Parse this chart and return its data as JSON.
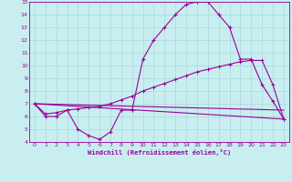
{
  "xlabel": "Windchill (Refroidissement éolien,°C)",
  "xlim": [
    -0.5,
    23.5
  ],
  "ylim": [
    4,
    15
  ],
  "xticks": [
    0,
    1,
    2,
    3,
    4,
    5,
    6,
    7,
    8,
    9,
    10,
    11,
    12,
    13,
    14,
    15,
    16,
    17,
    18,
    19,
    20,
    21,
    22,
    23
  ],
  "yticks": [
    4,
    5,
    6,
    7,
    8,
    9,
    10,
    11,
    12,
    13,
    14,
    15
  ],
  "bg_color": "#c8eef0",
  "grid_color": "#aad8dc",
  "line_color": "#990099",
  "line1_x": [
    0,
    1,
    2,
    3,
    4,
    5,
    6,
    7,
    8,
    9,
    10,
    11,
    12,
    13,
    14,
    15,
    16,
    17,
    18,
    19,
    20,
    21,
    22,
    23
  ],
  "line1_y": [
    7.0,
    6.0,
    6.0,
    6.5,
    5.0,
    4.5,
    4.2,
    4.8,
    6.5,
    6.5,
    10.5,
    12.0,
    13.0,
    14.0,
    14.8,
    15.0,
    15.0,
    14.0,
    13.0,
    10.5,
    10.5,
    8.5,
    7.2,
    5.8
  ],
  "line2_x": [
    0,
    23
  ],
  "line2_y": [
    7.0,
    5.8
  ],
  "line3_x": [
    0,
    23
  ],
  "line3_y": [
    7.0,
    6.5
  ],
  "line4_x": [
    0,
    1,
    2,
    3,
    4,
    5,
    6,
    7,
    8,
    9,
    10,
    11,
    12,
    13,
    14,
    15,
    16,
    17,
    18,
    19,
    20,
    21,
    22,
    23
  ],
  "line4_y": [
    7.0,
    6.2,
    6.3,
    6.5,
    6.6,
    6.7,
    6.8,
    7.0,
    7.3,
    7.6,
    8.0,
    8.3,
    8.6,
    8.9,
    9.2,
    9.5,
    9.7,
    9.9,
    10.1,
    10.3,
    10.4,
    10.4,
    8.5,
    5.8
  ]
}
